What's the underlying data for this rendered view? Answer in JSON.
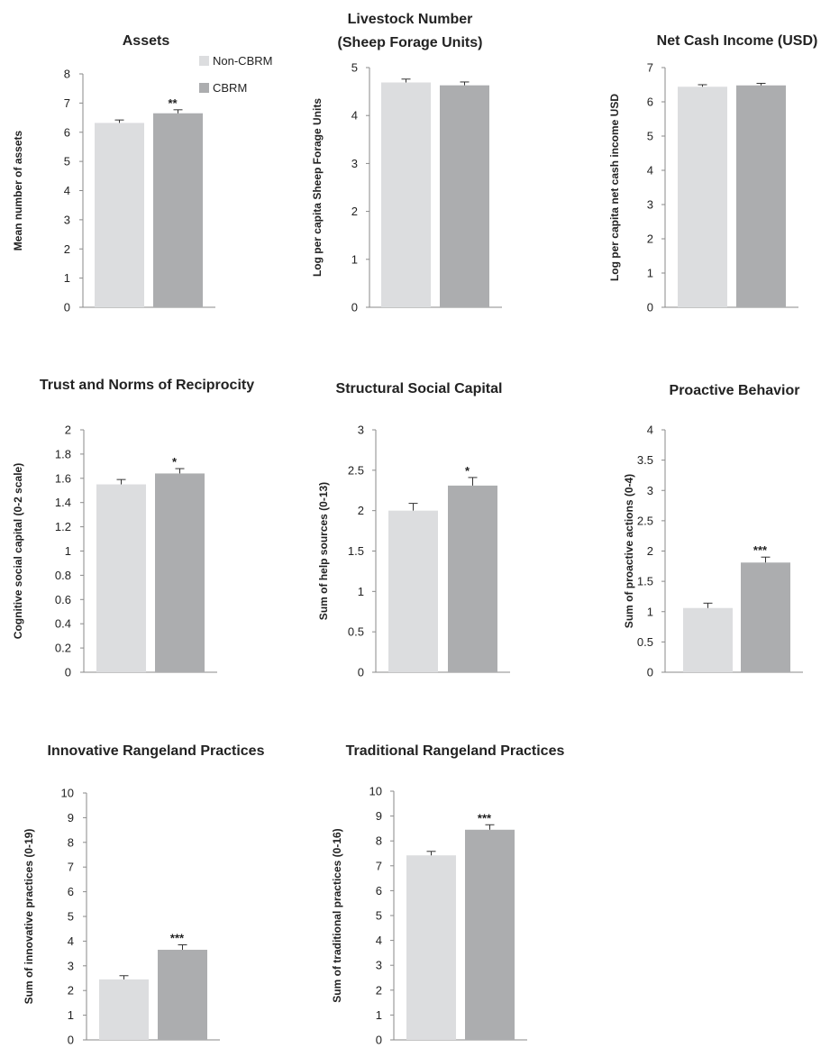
{
  "legend": [
    {
      "label": "Non-CBRM",
      "color": "#dcdddf"
    },
    {
      "label": "CBRM",
      "color": "#acadaf"
    }
  ],
  "chart_data": [
    {
      "type": "bar",
      "title": [
        "Assets"
      ],
      "ylabel": "Mean number of assets",
      "ylim": [
        0,
        8
      ],
      "ticks": [
        "0",
        "1",
        "2",
        "3",
        "4",
        "5",
        "6",
        "7",
        "8"
      ],
      "tickValues": [
        0,
        1,
        2,
        3,
        4,
        5,
        6,
        7,
        8
      ],
      "categories": [
        "Non-CBRM",
        "CBRM"
      ],
      "values": [
        6.32,
        6.65
      ],
      "errors": [
        0.1,
        0.12
      ],
      "significance": "**"
    },
    {
      "type": "bar",
      "title": [
        "Livestock Number",
        "(Sheep Forage Units)"
      ],
      "ylabel": "Log per capita Sheep Forage Units",
      "ylim": [
        0,
        5
      ],
      "ticks": [
        "0",
        "1",
        "2",
        "3",
        "4",
        "5"
      ],
      "tickValues": [
        0,
        1,
        2,
        3,
        4,
        5
      ],
      "categories": [
        "Non-CBRM",
        "CBRM"
      ],
      "values": [
        4.69,
        4.63
      ],
      "errors": [
        0.07,
        0.07
      ],
      "significance": ""
    },
    {
      "type": "bar",
      "title": [
        "Net Cash Income (USD)"
      ],
      "ylabel": "Log per capita net cash income USD",
      "ylim": [
        0,
        7
      ],
      "ticks": [
        "0",
        "1",
        "2",
        "3",
        "4",
        "5",
        "6",
        "7"
      ],
      "tickValues": [
        0,
        1,
        2,
        3,
        4,
        5,
        6,
        7
      ],
      "categories": [
        "Non-CBRM",
        "CBRM"
      ],
      "values": [
        6.44,
        6.48
      ],
      "errors": [
        0.06,
        0.06
      ],
      "significance": ""
    },
    {
      "type": "bar",
      "title": [
        "Trust and Norms of Reciprocity"
      ],
      "ylabel": "Cognitive social capital (0-2 scale)",
      "ylim": [
        0,
        2
      ],
      "ticks": [
        "0",
        "0.2",
        "0.4",
        "0.6",
        "0.8",
        "1",
        "1.2",
        "1.4",
        "1.6",
        "1.8",
        "2"
      ],
      "tickValues": [
        0,
        0.2,
        0.4,
        0.6,
        0.8,
        1,
        1.2,
        1.4,
        1.6,
        1.8,
        2
      ],
      "categories": [
        "Non-CBRM",
        "CBRM"
      ],
      "values": [
        1.55,
        1.64
      ],
      "errors": [
        0.04,
        0.04
      ],
      "significance": "*"
    },
    {
      "type": "bar",
      "title": [
        "Structural Social Capital"
      ],
      "ylabel": "Sum of help sources (0-13)",
      "ylim": [
        0,
        3
      ],
      "ticks": [
        "0",
        "0.5",
        "1",
        "1.5",
        "2",
        "2.5",
        "3"
      ],
      "tickValues": [
        0,
        0.5,
        1,
        1.5,
        2,
        2.5,
        3
      ],
      "categories": [
        "Non-CBRM",
        "CBRM"
      ],
      "values": [
        2.0,
        2.31
      ],
      "errors": [
        0.09,
        0.1
      ],
      "significance": "*"
    },
    {
      "type": "bar",
      "title": [
        "Proactive Behavior"
      ],
      "ylabel": "Sum of proactive actions (0-4)",
      "ylim": [
        0,
        4
      ],
      "ticks": [
        "0",
        "0.5",
        "1",
        "1.5",
        "2",
        "2.5",
        "3",
        "3.5",
        "4"
      ],
      "tickValues": [
        0,
        0.5,
        1,
        1.5,
        2,
        2.5,
        3,
        3.5,
        4
      ],
      "categories": [
        "Non-CBRM",
        "CBRM"
      ],
      "values": [
        1.06,
        1.81
      ],
      "errors": [
        0.08,
        0.09
      ],
      "significance": "***"
    },
    {
      "type": "bar",
      "title": [
        "Innovative Rangeland Practices"
      ],
      "ylabel": "Sum of innovative practices (0-19)",
      "ylim": [
        0,
        10
      ],
      "ticks": [
        "0",
        "1",
        "2",
        "3",
        "4",
        "5",
        "6",
        "7",
        "8",
        "9",
        "10"
      ],
      "tickValues": [
        0,
        1,
        2,
        3,
        4,
        5,
        6,
        7,
        8,
        9,
        10
      ],
      "categories": [
        "Non-CBRM",
        "CBRM"
      ],
      "values": [
        2.45,
        3.65
      ],
      "errors": [
        0.15,
        0.2
      ],
      "significance": "***"
    },
    {
      "type": "bar",
      "title": [
        "Traditional Rangeland Practices"
      ],
      "ylabel": "Sum of traditional practices (0-16)",
      "ylim": [
        0,
        10
      ],
      "ticks": [
        "0",
        "1",
        "2",
        "3",
        "4",
        "5",
        "6",
        "7",
        "8",
        "9",
        "10"
      ],
      "tickValues": [
        0,
        1,
        2,
        3,
        4,
        5,
        6,
        7,
        8,
        9,
        10
      ],
      "categories": [
        "Non-CBRM",
        "CBRM"
      ],
      "values": [
        7.42,
        8.45
      ],
      "errors": [
        0.16,
        0.2
      ],
      "significance": "***"
    }
  ]
}
